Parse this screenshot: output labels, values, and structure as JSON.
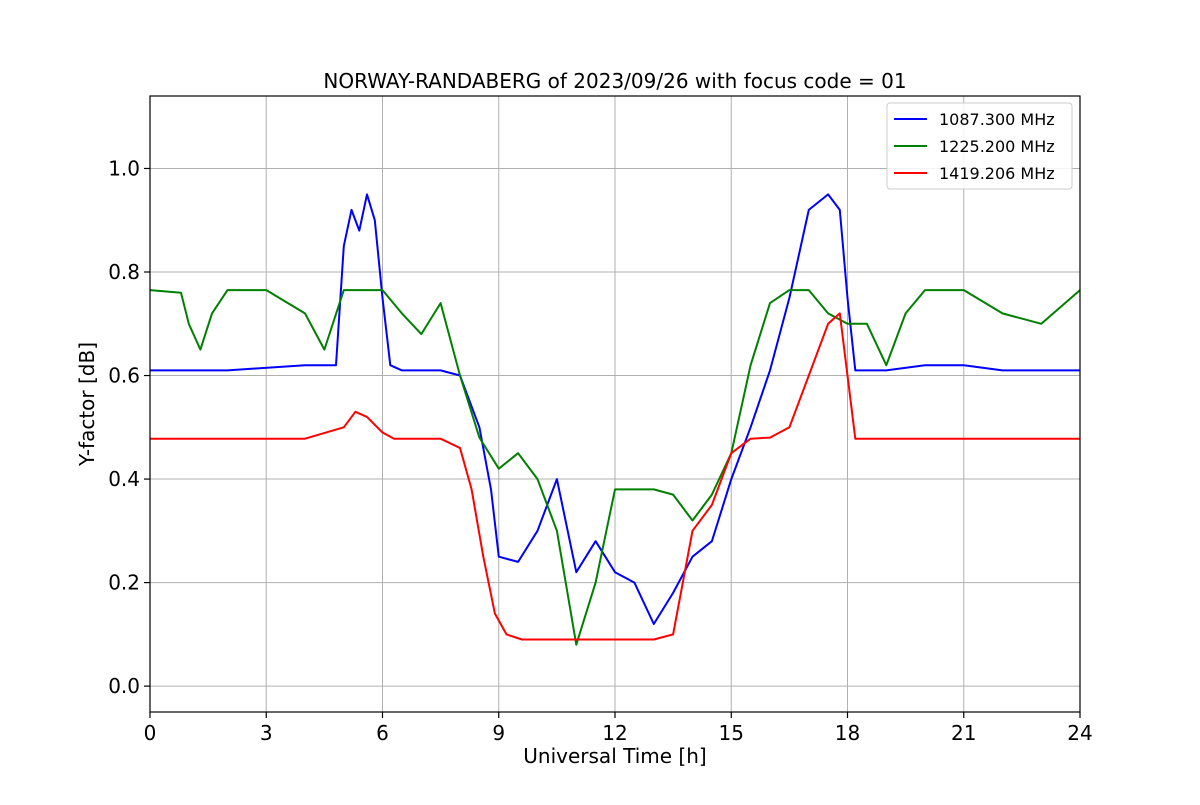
{
  "chart_data": {
    "type": "line",
    "title": "NORWAY-RANDABERG of 2023/09/26 with focus code = 01",
    "xlabel": "Universal Time [h]",
    "ylabel": "Y-factor [dB]",
    "xlim": [
      0,
      24
    ],
    "ylim": [
      -0.05,
      1.14
    ],
    "xticks": [
      0,
      3,
      6,
      9,
      12,
      15,
      18,
      21,
      24
    ],
    "xtick_labels": [
      "0",
      "3",
      "6",
      "9",
      "12",
      "15",
      "18",
      "21",
      "24"
    ],
    "yticks": [
      0.0,
      0.2,
      0.4,
      0.6,
      0.8,
      1.0
    ],
    "ytick_labels": [
      "0.0",
      "0.2",
      "0.4",
      "0.6",
      "0.8",
      "1.0"
    ],
    "grid": true,
    "legend_position": "top-right",
    "series": [
      {
        "name": "1087.300 MHz",
        "color": "#0000ff",
        "x": [
          0,
          2,
          4,
          4.8,
          5.0,
          5.2,
          5.4,
          5.6,
          5.8,
          6.0,
          6.2,
          6.5,
          7.5,
          8.0,
          8.5,
          8.8,
          9.0,
          9.5,
          10.0,
          10.5,
          11.0,
          11.5,
          12.0,
          12.5,
          13.0,
          13.5,
          14.0,
          14.5,
          15.0,
          15.5,
          16.0,
          16.5,
          17.0,
          17.5,
          17.8,
          18.0,
          18.2,
          19.0,
          20.0,
          21.0,
          22.0,
          23.0,
          24.0
        ],
        "y": [
          0.61,
          0.61,
          0.62,
          0.62,
          0.85,
          0.92,
          0.88,
          0.95,
          0.9,
          0.75,
          0.62,
          0.61,
          0.61,
          0.6,
          0.5,
          0.38,
          0.25,
          0.24,
          0.3,
          0.4,
          0.22,
          0.28,
          0.22,
          0.2,
          0.12,
          0.18,
          0.25,
          0.28,
          0.4,
          0.5,
          0.61,
          0.75,
          0.92,
          0.95,
          0.92,
          0.75,
          0.61,
          0.61,
          0.62,
          0.62,
          0.61,
          0.61,
          0.61
        ]
      },
      {
        "name": "1225.200 MHz",
        "color": "#008000",
        "x": [
          0,
          0.8,
          1.0,
          1.3,
          1.6,
          2.0,
          2.3,
          2.5,
          3.0,
          4.0,
          4.5,
          5.0,
          5.5,
          6.0,
          6.5,
          7.0,
          7.5,
          8.0,
          8.5,
          9.0,
          9.5,
          10.0,
          10.5,
          11.0,
          11.5,
          12.0,
          12.5,
          13.0,
          13.5,
          14.0,
          14.5,
          15.0,
          15.5,
          16.0,
          16.5,
          17.0,
          17.5,
          18.0,
          18.5,
          19.0,
          19.5,
          20.0,
          21.0,
          22.0,
          23.0,
          24.0
        ],
        "y": [
          0.765,
          0.76,
          0.7,
          0.65,
          0.72,
          0.765,
          0.765,
          0.765,
          0.765,
          0.72,
          0.65,
          0.765,
          0.765,
          0.765,
          0.72,
          0.68,
          0.74,
          0.6,
          0.48,
          0.42,
          0.45,
          0.4,
          0.3,
          0.08,
          0.2,
          0.38,
          0.38,
          0.38,
          0.37,
          0.32,
          0.37,
          0.45,
          0.62,
          0.74,
          0.765,
          0.765,
          0.72,
          0.7,
          0.7,
          0.62,
          0.72,
          0.765,
          0.765,
          0.72,
          0.7,
          0.765
        ]
      },
      {
        "name": "1419.206 MHz",
        "color": "#ff0000",
        "x": [
          0,
          2,
          4,
          5.0,
          5.3,
          5.6,
          6.0,
          6.3,
          7.0,
          7.5,
          8.0,
          8.3,
          8.6,
          8.9,
          9.2,
          9.6,
          10.0,
          10.5,
          11.0,
          11.5,
          12.0,
          12.5,
          13.0,
          13.5,
          14.0,
          14.5,
          15.0,
          15.5,
          16.0,
          16.5,
          17.0,
          17.5,
          17.8,
          18.0,
          18.2,
          19.0,
          20.0,
          21.0,
          22.0,
          23.0,
          24.0
        ],
        "y": [
          0.478,
          0.478,
          0.478,
          0.5,
          0.53,
          0.52,
          0.49,
          0.478,
          0.478,
          0.478,
          0.46,
          0.38,
          0.25,
          0.14,
          0.1,
          0.09,
          0.09,
          0.09,
          0.09,
          0.09,
          0.09,
          0.09,
          0.09,
          0.1,
          0.3,
          0.35,
          0.45,
          0.478,
          0.48,
          0.5,
          0.6,
          0.7,
          0.72,
          0.6,
          0.478,
          0.478,
          0.478,
          0.478,
          0.478,
          0.478,
          0.478
        ]
      }
    ]
  }
}
